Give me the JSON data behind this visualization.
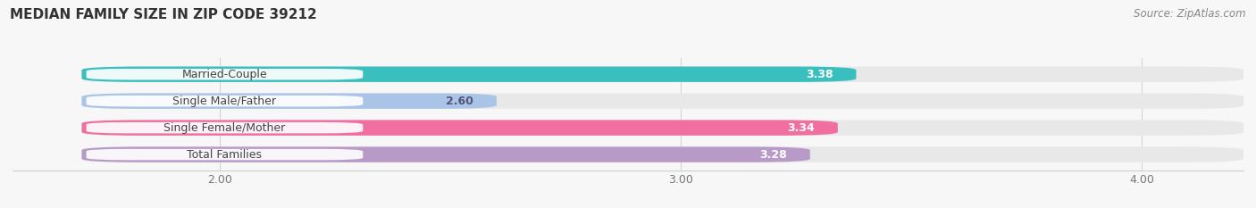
{
  "title": "MEDIAN FAMILY SIZE IN ZIP CODE 39212",
  "source": "Source: ZipAtlas.com",
  "categories": [
    "Married-Couple",
    "Single Male/Father",
    "Single Female/Mother",
    "Total Families"
  ],
  "values": [
    3.38,
    2.6,
    3.34,
    3.28
  ],
  "bar_colors": [
    "#3abfbf",
    "#aac4e8",
    "#f06fa0",
    "#b89ac8"
  ],
  "bar_bg_color": "#e8e8e8",
  "label_values": [
    "3.38",
    "2.60",
    "3.34",
    "3.28"
  ],
  "xlim_min": 1.55,
  "xlim_max": 4.22,
  "xstart": 1.7,
  "xticks": [
    2.0,
    3.0,
    4.0
  ],
  "xtick_labels": [
    "2.00",
    "3.00",
    "4.00"
  ],
  "title_fontsize": 11,
  "source_fontsize": 8.5,
  "label_fontsize": 9,
  "tick_fontsize": 9,
  "bar_height": 0.58,
  "bg_color": "#f7f7f7",
  "white": "#ffffff",
  "dark_text": "#444444",
  "grid_color": "#d0d0d0",
  "label_text_colors": [
    "#ffffff",
    "#555577",
    "#ffffff",
    "#ffffff"
  ]
}
